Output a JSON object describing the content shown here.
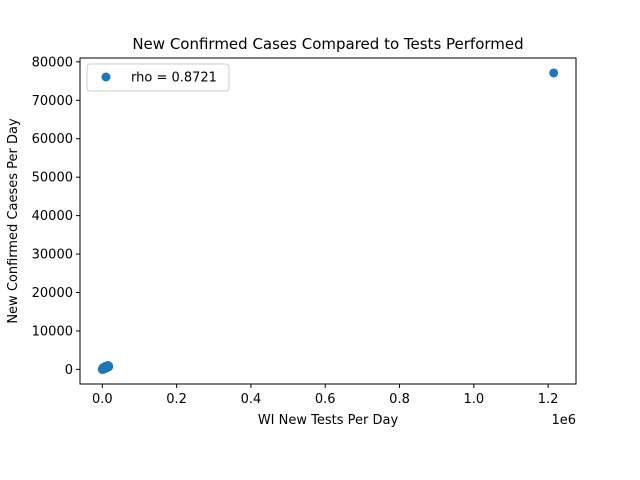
{
  "chart_data": {
    "type": "scatter",
    "title": "New Confirmed Cases Compared to Tests Performed",
    "xlabel": "WI New Tests Per Day",
    "ylabel": "New Confirmed Caeses Per Day",
    "x_offset_label": "1e6",
    "x_ticks": [
      0.0,
      0.2,
      0.4,
      0.6,
      0.8,
      1.0,
      1.2
    ],
    "x_tick_labels": [
      "0.0",
      "0.2",
      "0.4",
      "0.6",
      "0.8",
      "1.0",
      "1.2"
    ],
    "y_ticks": [
      0,
      10000,
      20000,
      30000,
      40000,
      50000,
      60000,
      70000,
      80000
    ],
    "y_tick_labels": [
      "0",
      "10000",
      "20000",
      "30000",
      "40000",
      "50000",
      "60000",
      "70000",
      "80000"
    ],
    "xlim": [
      -60000,
      1275000
    ],
    "ylim": [
      -3800,
      81000
    ],
    "grid": false,
    "legend_position": "top-left",
    "marker_color": "#1f77b4",
    "series": [
      {
        "name": "rho = 0.8721",
        "x": [
          1215000,
          0,
          1200,
          2500,
          3500,
          4800,
          6000,
          7200,
          8000,
          9000,
          10000,
          11000,
          12000,
          13000,
          14000,
          15000,
          16000,
          17000,
          2000,
          5000,
          8500,
          11500,
          14500,
          16500,
          3000,
          6500,
          9500,
          12500,
          15500,
          17500,
          4000,
          7500,
          10500,
          13500,
          600,
          1800
        ],
        "y": [
          77100,
          0,
          20,
          60,
          100,
          150,
          200,
          250,
          280,
          320,
          360,
          400,
          450,
          500,
          550,
          600,
          650,
          700,
          400,
          600,
          800,
          850,
          900,
          750,
          200,
          500,
          700,
          900,
          1000,
          800,
          300,
          450,
          600,
          650,
          50,
          120
        ]
      }
    ]
  }
}
